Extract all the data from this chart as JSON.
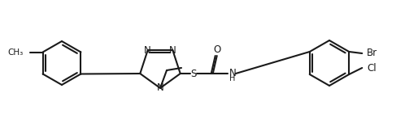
{
  "bg_color": "#ffffff",
  "line_color": "#1a1a1a",
  "line_width": 1.5,
  "font_size": 8.5,
  "fig_width": 5.14,
  "fig_height": 1.46,
  "dpi": 100,
  "xlim": [
    0,
    514
  ],
  "ylim": [
    0,
    146
  ]
}
